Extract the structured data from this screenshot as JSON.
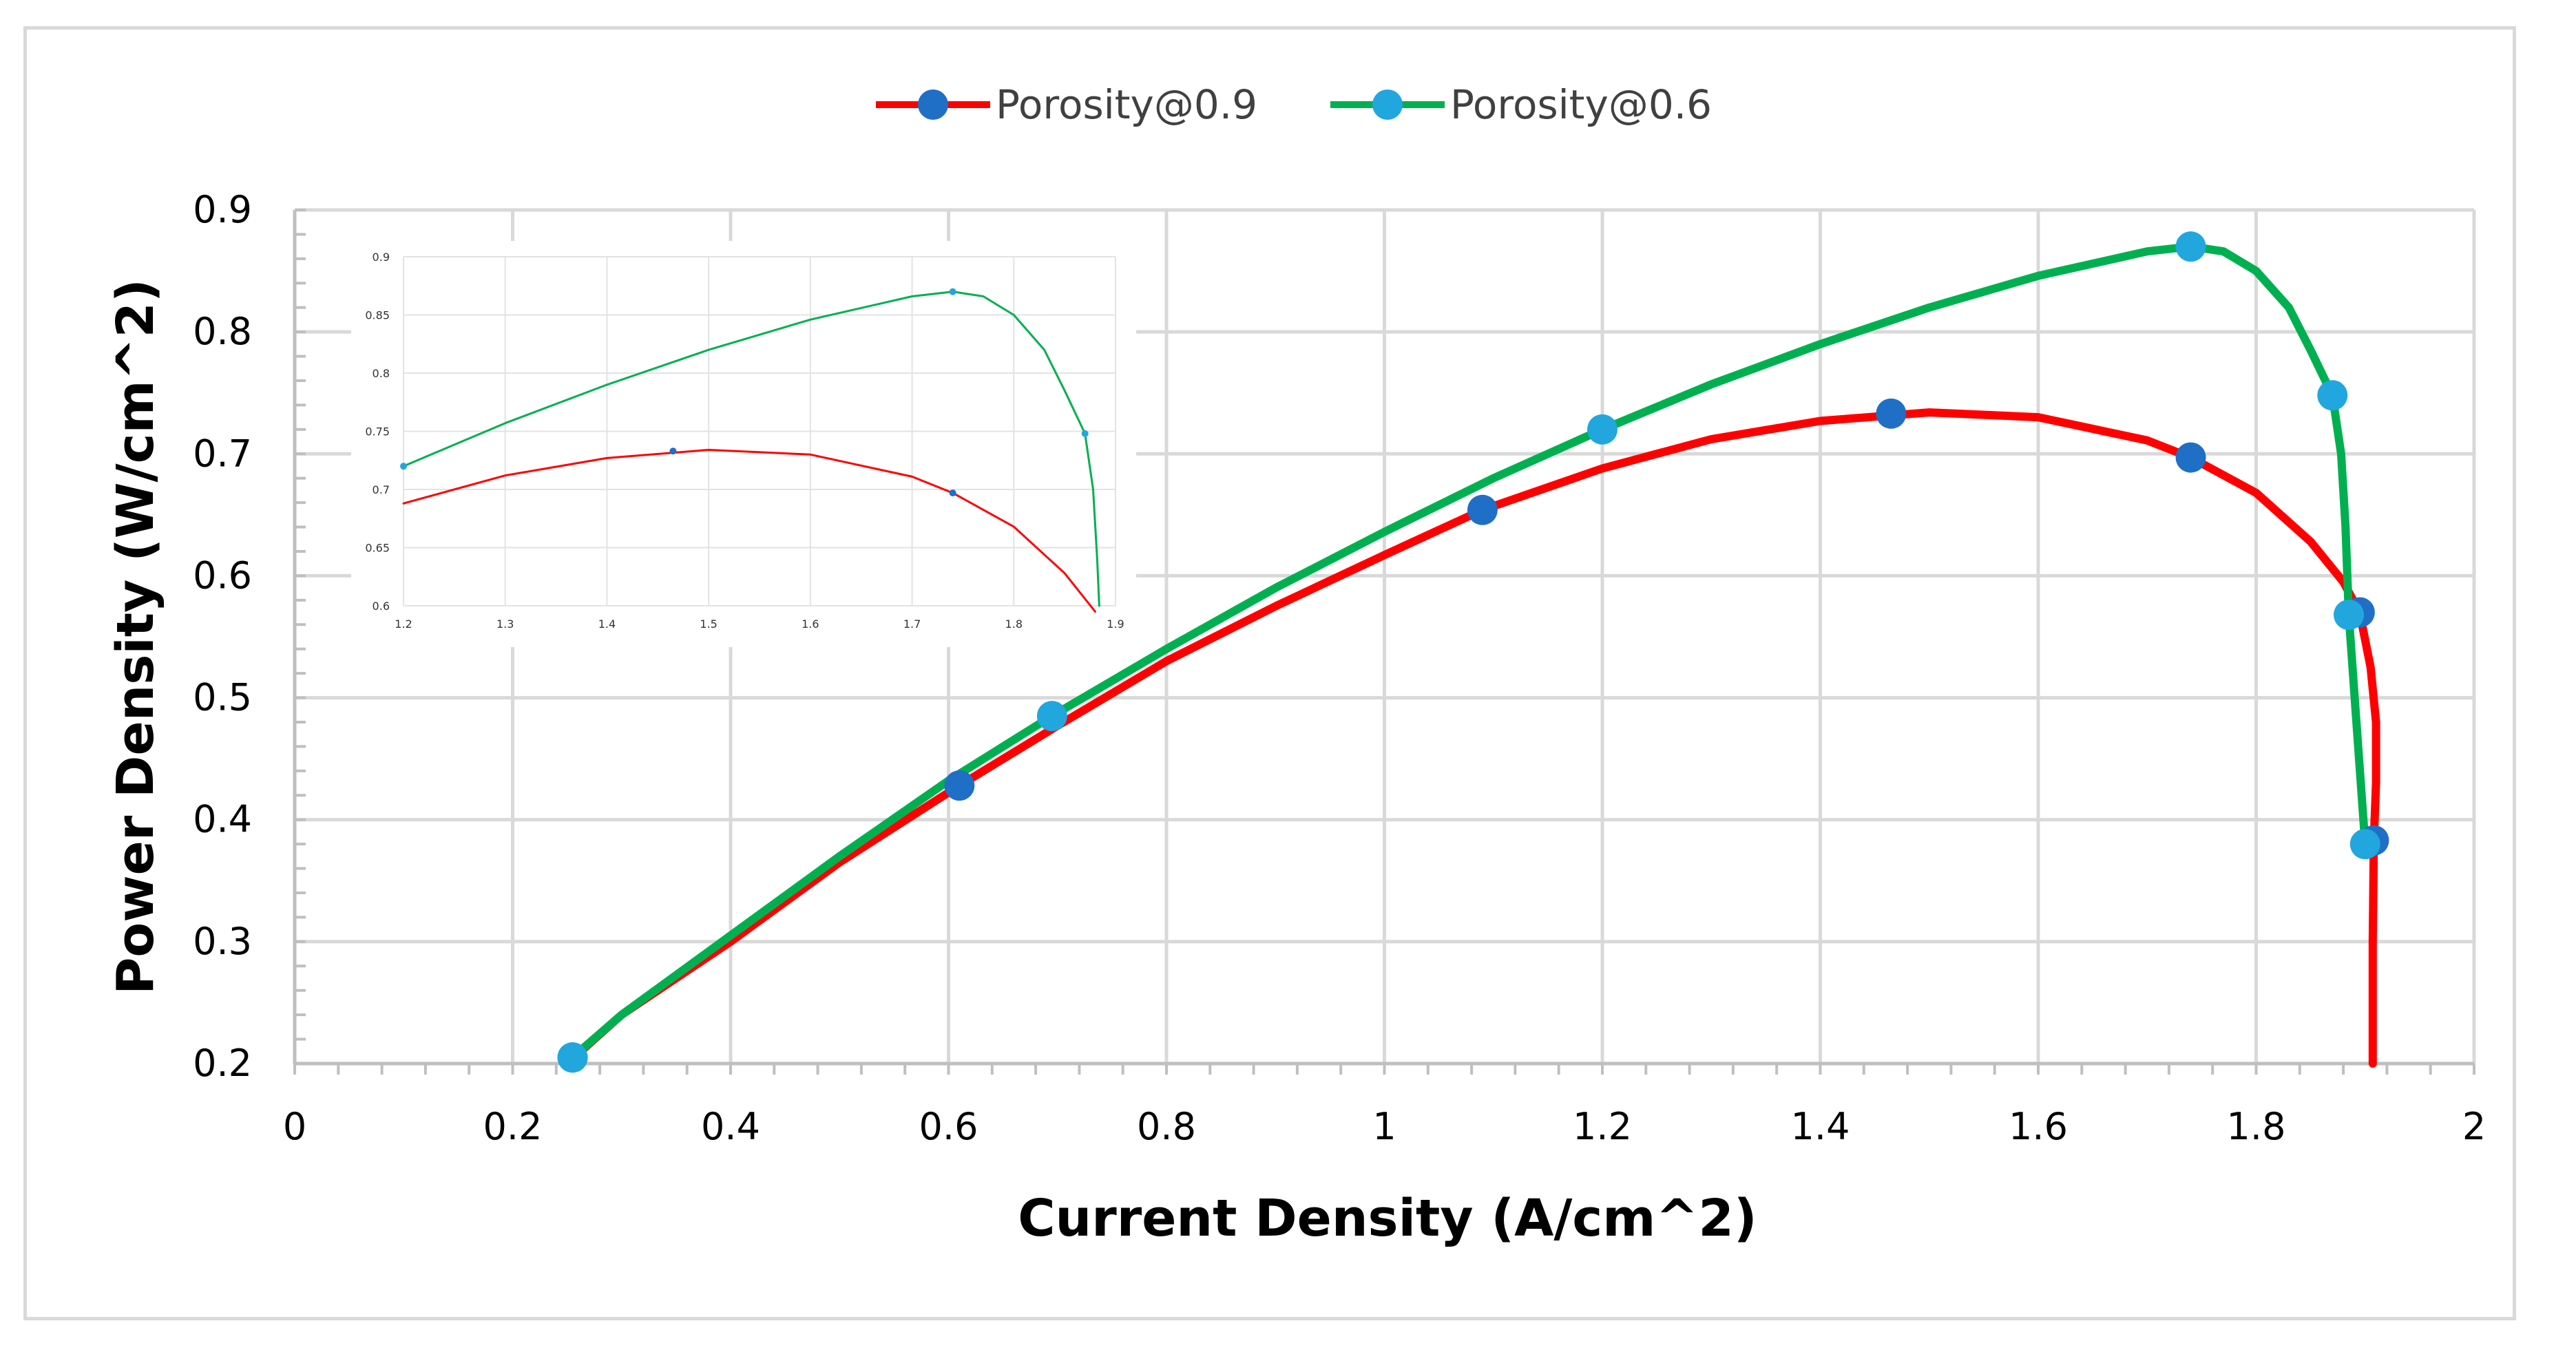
{
  "chart_data": [
    {
      "type": "line",
      "title": "",
      "xlabel": "Current Density (A/cm^2)",
      "ylabel": "Power Density (W/cm^2)",
      "xlim": [
        0,
        2
      ],
      "ylim": [
        0.2,
        0.9
      ],
      "x_ticks": [
        "0",
        "0.2",
        "0.4",
        "0.6",
        "0.8",
        "1",
        "1.2",
        "1.4",
        "1.6",
        "1.8",
        "2"
      ],
      "y_ticks": [
        "0.2",
        "0.3",
        "0.4",
        "0.5",
        "0.6",
        "0.7",
        "0.8",
        "0.9"
      ],
      "grid": true,
      "legend_position": "top-center",
      "series": [
        {
          "name": "Porosity@0.9",
          "line_color": "#ff0000",
          "marker_color": "#1f6fc6",
          "markers": [
            {
              "x": 0.255,
              "y": 0.205
            },
            {
              "x": 0.61,
              "y": 0.428
            },
            {
              "x": 1.09,
              "y": 0.654
            },
            {
              "x": 1.465,
              "y": 0.733
            },
            {
              "x": 1.74,
              "y": 0.697
            },
            {
              "x": 1.895,
              "y": 0.57
            },
            {
              "x": 1.908,
              "y": 0.383
            }
          ],
          "curve": [
            {
              "x": 0.25,
              "y": 0.2
            },
            {
              "x": 0.3,
              "y": 0.24
            },
            {
              "x": 0.4,
              "y": 0.3
            },
            {
              "x": 0.5,
              "y": 0.365
            },
            {
              "x": 0.61,
              "y": 0.428
            },
            {
              "x": 0.7,
              "y": 0.477
            },
            {
              "x": 0.8,
              "y": 0.53
            },
            {
              "x": 0.9,
              "y": 0.575
            },
            {
              "x": 1.0,
              "y": 0.617
            },
            {
              "x": 1.09,
              "y": 0.654
            },
            {
              "x": 1.2,
              "y": 0.688
            },
            {
              "x": 1.3,
              "y": 0.712
            },
            {
              "x": 1.4,
              "y": 0.727
            },
            {
              "x": 1.5,
              "y": 0.734
            },
            {
              "x": 1.6,
              "y": 0.73
            },
            {
              "x": 1.7,
              "y": 0.711
            },
            {
              "x": 1.74,
              "y": 0.697
            },
            {
              "x": 1.8,
              "y": 0.668
            },
            {
              "x": 1.85,
              "y": 0.628
            },
            {
              "x": 1.88,
              "y": 0.595
            },
            {
              "x": 1.895,
              "y": 0.57
            },
            {
              "x": 1.905,
              "y": 0.525
            },
            {
              "x": 1.91,
              "y": 0.48
            },
            {
              "x": 1.91,
              "y": 0.43
            },
            {
              "x": 1.908,
              "y": 0.383
            },
            {
              "x": 1.907,
              "y": 0.3
            },
            {
              "x": 1.907,
              "y": 0.2
            }
          ]
        },
        {
          "name": "Porosity@0.6",
          "line_color": "#00b050",
          "marker_color": "#22a6de",
          "markers": [
            {
              "x": 0.255,
              "y": 0.205
            },
            {
              "x": 0.695,
              "y": 0.485
            },
            {
              "x": 1.2,
              "y": 0.72
            },
            {
              "x": 1.74,
              "y": 0.87
            },
            {
              "x": 1.87,
              "y": 0.748
            },
            {
              "x": 1.885,
              "y": 0.568
            },
            {
              "x": 1.9,
              "y": 0.38
            }
          ],
          "curve": [
            {
              "x": 0.255,
              "y": 0.205
            },
            {
              "x": 0.3,
              "y": 0.24
            },
            {
              "x": 0.4,
              "y": 0.305
            },
            {
              "x": 0.5,
              "y": 0.37
            },
            {
              "x": 0.6,
              "y": 0.432
            },
            {
              "x": 0.695,
              "y": 0.485
            },
            {
              "x": 0.8,
              "y": 0.54
            },
            {
              "x": 0.9,
              "y": 0.59
            },
            {
              "x": 1.0,
              "y": 0.636
            },
            {
              "x": 1.1,
              "y": 0.68
            },
            {
              "x": 1.2,
              "y": 0.72
            },
            {
              "x": 1.3,
              "y": 0.757
            },
            {
              "x": 1.4,
              "y": 0.79
            },
            {
              "x": 1.5,
              "y": 0.82
            },
            {
              "x": 1.6,
              "y": 0.846
            },
            {
              "x": 1.7,
              "y": 0.866
            },
            {
              "x": 1.74,
              "y": 0.87
            },
            {
              "x": 1.77,
              "y": 0.866
            },
            {
              "x": 1.8,
              "y": 0.85
            },
            {
              "x": 1.83,
              "y": 0.82
            },
            {
              "x": 1.85,
              "y": 0.785
            },
            {
              "x": 1.87,
              "y": 0.748
            },
            {
              "x": 1.878,
              "y": 0.7
            },
            {
              "x": 1.882,
              "y": 0.64
            },
            {
              "x": 1.885,
              "y": 0.568
            },
            {
              "x": 1.892,
              "y": 0.48
            },
            {
              "x": 1.9,
              "y": 0.38
            }
          ]
        }
      ]
    },
    {
      "type": "line",
      "title": "",
      "xlabel": "",
      "ylabel": "",
      "xlim": [
        1.2,
        1.9
      ],
      "ylim": [
        0.6,
        0.9
      ],
      "x_ticks": [
        "1.2",
        "1.3",
        "1.4",
        "1.5",
        "1.6",
        "1.7",
        "1.8",
        "1.9"
      ],
      "y_ticks": [
        "0.6",
        "0.65",
        "0.7",
        "0.75",
        "0.8",
        "0.85",
        "0.9"
      ],
      "grid": true,
      "series": [
        {
          "name": "Porosity@0.9",
          "line_color": "#ff0000",
          "marker_color": "#1f6fc6",
          "markers": [
            {
              "x": 1.465,
              "y": 0.733
            },
            {
              "x": 1.74,
              "y": 0.697
            }
          ],
          "curve": [
            {
              "x": 1.2,
              "y": 0.688
            },
            {
              "x": 1.3,
              "y": 0.712
            },
            {
              "x": 1.4,
              "y": 0.727
            },
            {
              "x": 1.5,
              "y": 0.734
            },
            {
              "x": 1.6,
              "y": 0.73
            },
            {
              "x": 1.7,
              "y": 0.711
            },
            {
              "x": 1.74,
              "y": 0.697
            },
            {
              "x": 1.8,
              "y": 0.668
            },
            {
              "x": 1.85,
              "y": 0.628
            },
            {
              "x": 1.88,
              "y": 0.595
            }
          ]
        },
        {
          "name": "Porosity@0.6",
          "line_color": "#00b050",
          "marker_color": "#22a6de",
          "markers": [
            {
              "x": 1.2,
              "y": 0.72
            },
            {
              "x": 1.74,
              "y": 0.87
            },
            {
              "x": 1.87,
              "y": 0.748
            }
          ],
          "curve": [
            {
              "x": 1.2,
              "y": 0.72
            },
            {
              "x": 1.3,
              "y": 0.757
            },
            {
              "x": 1.4,
              "y": 0.79
            },
            {
              "x": 1.5,
              "y": 0.82
            },
            {
              "x": 1.6,
              "y": 0.846
            },
            {
              "x": 1.7,
              "y": 0.866
            },
            {
              "x": 1.74,
              "y": 0.87
            },
            {
              "x": 1.77,
              "y": 0.866
            },
            {
              "x": 1.8,
              "y": 0.85
            },
            {
              "x": 1.83,
              "y": 0.82
            },
            {
              "x": 1.85,
              "y": 0.785
            },
            {
              "x": 1.87,
              "y": 0.748
            },
            {
              "x": 1.878,
              "y": 0.7
            },
            {
              "x": 1.882,
              "y": 0.64
            },
            {
              "x": 1.884,
              "y": 0.6
            }
          ]
        }
      ]
    }
  ]
}
